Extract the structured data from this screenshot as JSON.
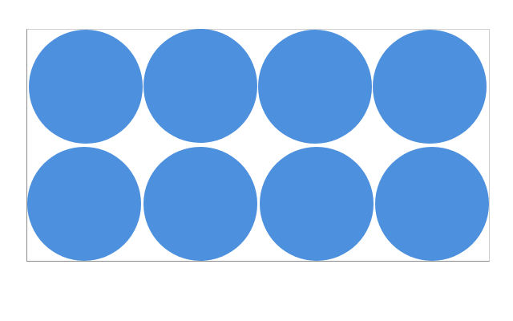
{
  "diagram": {
    "shape": "circle",
    "rows": 2,
    "columns": 4,
    "count": 8,
    "fill_color": "#4d90de",
    "frame_color": "#8a8a8a",
    "background_color": "#ffffff"
  }
}
